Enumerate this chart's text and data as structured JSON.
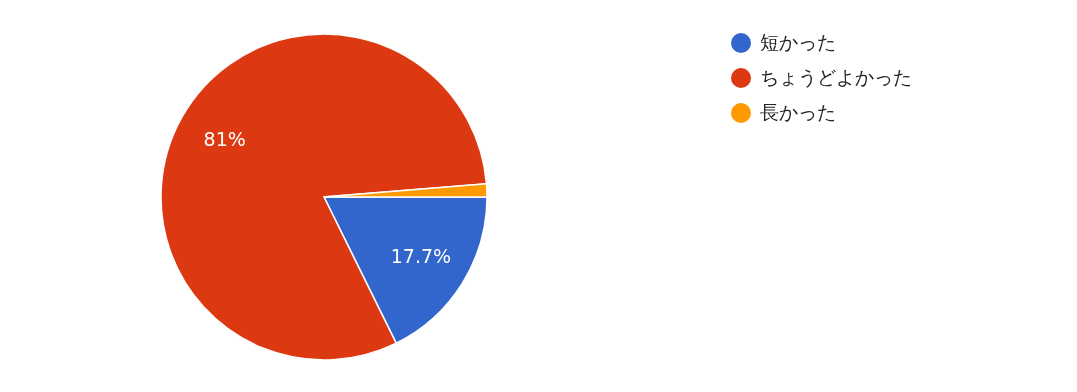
{
  "chart_data": {
    "type": "pie",
    "categories": [
      "短かった",
      "ちょうどよかった",
      "長かった"
    ],
    "values": [
      17.7,
      81,
      1.3
    ],
    "colors": [
      "#3366cc",
      "#dc3912",
      "#ff9900"
    ],
    "value_labels": [
      "17.7%",
      "81%",
      null
    ],
    "legend": "top right"
  }
}
